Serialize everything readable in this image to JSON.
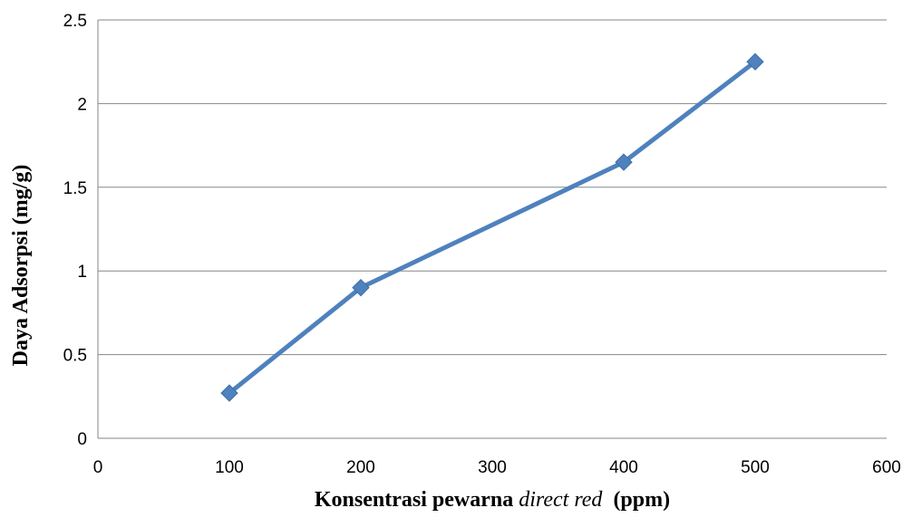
{
  "chart_data": {
    "type": "line",
    "title": "",
    "xlabel_parts": [
      {
        "text": "Konsentrasi pewarna ",
        "italic": false
      },
      {
        "text": "direct red",
        "italic": true
      },
      {
        "text": "  (ppm)",
        "italic": false
      }
    ],
    "ylabel": "Daya Adsorpsi (mg/g)",
    "xlim": [
      0,
      600
    ],
    "ylim": [
      0,
      2.5
    ],
    "xticks": [
      0,
      100,
      200,
      300,
      400,
      500,
      600
    ],
    "yticks": [
      0,
      0.5,
      1,
      1.5,
      2,
      2.5
    ],
    "grid": "horizontal",
    "legend": "none",
    "series": [
      {
        "x": [
          100,
          200,
          400,
          500
        ],
        "y": [
          0.27,
          0.9,
          1.65,
          2.25
        ],
        "color": "#4F81BD",
        "marker": "diamond"
      }
    ]
  }
}
